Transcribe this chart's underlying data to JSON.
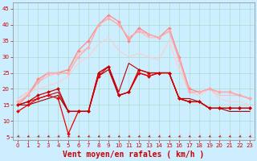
{
  "title": "",
  "xlabel": "Vent moyen/en rafales ( km/h )",
  "ylabel": "",
  "background_color": "#cceeff",
  "grid_color": "#aaddcc",
  "xlim": [
    -0.5,
    23.5
  ],
  "ylim": [
    4,
    47
  ],
  "yticks": [
    5,
    10,
    15,
    20,
    25,
    30,
    35,
    40,
    45
  ],
  "xticks": [
    0,
    1,
    2,
    3,
    4,
    5,
    6,
    7,
    8,
    9,
    10,
    11,
    12,
    13,
    14,
    15,
    16,
    17,
    18,
    19,
    20,
    21,
    22,
    23
  ],
  "series": [
    {
      "y": [
        15,
        16,
        18,
        19,
        20,
        13,
        13,
        13,
        25,
        27,
        18,
        19,
        26,
        25,
        25,
        25,
        17,
        16,
        16,
        14,
        14,
        14,
        14,
        14
      ],
      "color": "#cc0000",
      "marker": "D",
      "markersize": 2,
      "linewidth": 0.9,
      "zorder": 5
    },
    {
      "y": [
        13,
        15,
        17,
        18,
        17,
        6,
        13,
        13,
        24,
        27,
        18,
        19,
        25,
        24,
        25,
        25,
        17,
        16,
        16,
        14,
        14,
        14,
        14,
        14
      ],
      "color": "#ee0000",
      "marker": "D",
      "markersize": 2,
      "linewidth": 0.9,
      "zorder": 4
    },
    {
      "y": [
        15,
        16,
        17,
        18,
        19,
        13,
        13,
        13,
        25,
        27,
        19,
        28,
        26,
        25,
        25,
        25,
        17,
        17,
        16,
        14,
        14,
        14,
        14,
        14
      ],
      "color": "#bb0000",
      "marker": null,
      "markersize": 0,
      "linewidth": 0.8,
      "zorder": 3
    },
    {
      "y": [
        15,
        15,
        16,
        17,
        18,
        13,
        13,
        13,
        24,
        26,
        18,
        19,
        25,
        24,
        25,
        25,
        17,
        16,
        16,
        14,
        14,
        13,
        13,
        13
      ],
      "color": "#990000",
      "marker": null,
      "markersize": 0,
      "linewidth": 0.8,
      "zorder": 3
    },
    {
      "y": [
        16,
        18,
        22,
        25,
        25,
        25,
        30,
        33,
        40,
        42,
        40,
        36,
        38,
        37,
        36,
        38,
        29,
        19,
        19,
        20,
        19,
        19,
        18,
        17
      ],
      "color": "#ffaaaa",
      "marker": "D",
      "markersize": 2,
      "linewidth": 0.9,
      "zorder": 4
    },
    {
      "y": [
        15,
        18,
        23,
        25,
        25,
        26,
        32,
        35,
        40,
        43,
        41,
        35,
        39,
        37,
        36,
        39,
        30,
        20,
        19,
        20,
        19,
        19,
        18,
        17
      ],
      "color": "#ff8888",
      "marker": "D",
      "markersize": 2,
      "linewidth": 0.9,
      "zorder": 3
    },
    {
      "y": [
        17,
        19,
        22,
        24,
        25,
        26,
        31,
        33,
        40,
        42,
        40,
        36,
        38,
        36,
        36,
        38,
        29,
        19,
        19,
        20,
        18,
        18,
        18,
        17
      ],
      "color": "#ffbbbb",
      "marker": null,
      "markersize": 0,
      "linewidth": 0.8,
      "zorder": 2
    },
    {
      "y": [
        15,
        19,
        20,
        21,
        22,
        24,
        28,
        30,
        34,
        36,
        32,
        30,
        31,
        30,
        29,
        35,
        26,
        19,
        18,
        20,
        17,
        16,
        16,
        15
      ],
      "color": "#ffcccc",
      "marker": null,
      "markersize": 0,
      "linewidth": 0.8,
      "zorder": 2
    }
  ],
  "arrow_color": "#cc0000",
  "xlabel_color": "#cc0000",
  "xlabel_fontsize": 7,
  "tick_fontsize": 5,
  "tick_color": "#cc0000"
}
